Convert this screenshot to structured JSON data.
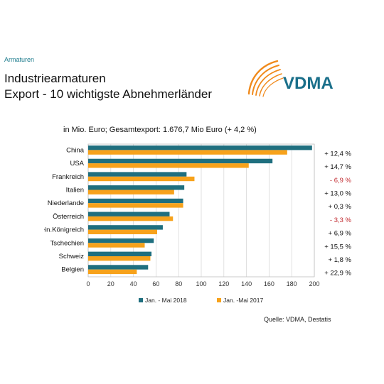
{
  "section_label": "Armaturen",
  "title_line1": "Industriearmaturen",
  "title_line2": "Export - 10 wichtigste Abnehmerländer",
  "subtitle": "in Mio. Euro; Gesamtexport: 1.676,7 Mio Euro (+ 4,2 %)",
  "logo": {
    "text": "VDMA",
    "color": "#1a6f8a",
    "arc_color": "#f08a1c"
  },
  "source": "Quelle: VDMA, Destatis",
  "colors": {
    "teal": "#1f6f7f",
    "orange": "#f7a21b",
    "negative": "#c0282d",
    "text": "#111111"
  },
  "chart_data": {
    "type": "bar",
    "orientation": "horizontal",
    "categories": [
      "China",
      "USA",
      "Frankreich",
      "Italien",
      "Niederlande",
      "Österreich",
      "Verein.Königreich",
      "Tschechien",
      "Schweiz",
      "Belgien"
    ],
    "series": [
      {
        "name": "Jan. - Mai 2018",
        "color": "#1f6f7f",
        "values": [
          198,
          163,
          87,
          85,
          84,
          72,
          66,
          58,
          56,
          53
        ]
      },
      {
        "name": "Jan. -Mai 2017",
        "color": "#f7a21b",
        "values": [
          176,
          142,
          94,
          76,
          84,
          75,
          61,
          50,
          55,
          43
        ]
      }
    ],
    "annotations": [
      "+ 12,4 %",
      "+ 14,7 %",
      "- 6,9 %",
      "+ 13,0 %",
      "+ 0,3 %",
      "- 3,3 %",
      "+ 6,9 %",
      "+ 15,5 %",
      "+ 1,8 %",
      "+ 22,9 %"
    ],
    "annotation_negative": [
      false,
      false,
      true,
      false,
      false,
      true,
      false,
      false,
      false,
      false
    ],
    "xticks": [
      "0",
      "20",
      "40",
      "60",
      "80",
      "100",
      "120",
      "140",
      "160",
      "180",
      "200"
    ],
    "xlim": [
      0,
      200
    ],
    "grid": true,
    "legend_position": "bottom"
  }
}
